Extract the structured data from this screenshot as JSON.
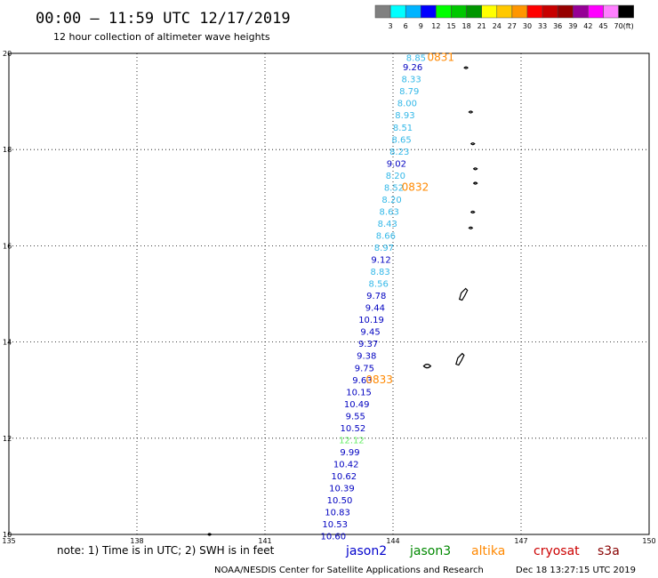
{
  "header": {
    "title": "00:00 – 11:59 UTC 12/17/2019",
    "subtitle": "12 hour collection of altimeter wave heights"
  },
  "colorbar": {
    "colors": [
      "#808080",
      "#00ffff",
      "#00b4ff",
      "#0000ff",
      "#00ff00",
      "#00c800",
      "#009600",
      "#ffff00",
      "#ffc800",
      "#ff9600",
      "#ff0000",
      "#c80000",
      "#960000",
      "#960096",
      "#ff00ff",
      "#ff80ff",
      "#000000"
    ],
    "labels": [
      "3",
      "6",
      "9",
      "12",
      "15",
      "18",
      "21",
      "24",
      "27",
      "30",
      "33",
      "36",
      "39",
      "42",
      "45",
      "70",
      "(ft)"
    ]
  },
  "chart_data": {
    "type": "scatter",
    "xlim": [
      135,
      150
    ],
    "ylim": [
      10,
      20
    ],
    "x_ticks": [
      "135",
      "138",
      "141",
      "144",
      "147",
      "150"
    ],
    "y_ticks": [
      "10",
      "12",
      "14",
      "16",
      "18",
      "20"
    ],
    "grid": true,
    "points": [
      {
        "lon": 144.54,
        "lat": 19.92,
        "swh": "8.85",
        "color": "#33b8e8"
      },
      {
        "lon": 144.46,
        "lat": 19.72,
        "swh": "9.26",
        "color": "#0000c0"
      },
      {
        "lon": 144.43,
        "lat": 19.47,
        "swh": "8.33",
        "color": "#33b8e8"
      },
      {
        "lon": 144.38,
        "lat": 19.22,
        "swh": "8.79",
        "color": "#33b8e8"
      },
      {
        "lon": 144.33,
        "lat": 18.97,
        "swh": "8.00",
        "color": "#33b8e8"
      },
      {
        "lon": 144.28,
        "lat": 18.72,
        "swh": "8.93",
        "color": "#33b8e8"
      },
      {
        "lon": 144.23,
        "lat": 18.47,
        "swh": "8.51",
        "color": "#33b8e8"
      },
      {
        "lon": 144.2,
        "lat": 18.22,
        "swh": "8.65",
        "color": "#33b8e8"
      },
      {
        "lon": 144.15,
        "lat": 17.97,
        "swh": "8.23",
        "color": "#33b8e8"
      },
      {
        "lon": 144.08,
        "lat": 17.72,
        "swh": "9.02",
        "color": "#0000c0"
      },
      {
        "lon": 144.06,
        "lat": 17.47,
        "swh": "8.20",
        "color": "#33b8e8"
      },
      {
        "lon": 144.02,
        "lat": 17.22,
        "swh": "8.52",
        "color": "#33b8e8"
      },
      {
        "lon": 143.97,
        "lat": 16.97,
        "swh": "8.20",
        "color": "#33b8e8"
      },
      {
        "lon": 143.91,
        "lat": 16.72,
        "swh": "8.63",
        "color": "#33b8e8"
      },
      {
        "lon": 143.87,
        "lat": 16.47,
        "swh": "8.43",
        "color": "#33b8e8"
      },
      {
        "lon": 143.83,
        "lat": 16.22,
        "swh": "8.66",
        "color": "#33b8e8"
      },
      {
        "lon": 143.79,
        "lat": 15.97,
        "swh": "8.97",
        "color": "#33b8e8"
      },
      {
        "lon": 143.72,
        "lat": 15.72,
        "swh": "9.12",
        "color": "#0000c0"
      },
      {
        "lon": 143.7,
        "lat": 15.47,
        "swh": "8.83",
        "color": "#33b8e8"
      },
      {
        "lon": 143.66,
        "lat": 15.22,
        "swh": "8.56",
        "color": "#33b8e8"
      },
      {
        "lon": 143.61,
        "lat": 14.97,
        "swh": "9.78",
        "color": "#0000c0"
      },
      {
        "lon": 143.58,
        "lat": 14.72,
        "swh": "9.44",
        "color": "#0000c0"
      },
      {
        "lon": 143.49,
        "lat": 14.47,
        "swh": "10.19",
        "color": "#0000c0"
      },
      {
        "lon": 143.47,
        "lat": 14.22,
        "swh": "9.45",
        "color": "#0000c0"
      },
      {
        "lon": 143.42,
        "lat": 13.97,
        "swh": "9.37",
        "color": "#0000c0"
      },
      {
        "lon": 143.38,
        "lat": 13.72,
        "swh": "9.38",
        "color": "#0000c0"
      },
      {
        "lon": 143.33,
        "lat": 13.47,
        "swh": "9.75",
        "color": "#0000c0"
      },
      {
        "lon": 143.28,
        "lat": 13.22,
        "swh": "9.63",
        "color": "#0000c0"
      },
      {
        "lon": 143.2,
        "lat": 12.97,
        "swh": "10.15",
        "color": "#0000c0"
      },
      {
        "lon": 143.15,
        "lat": 12.72,
        "swh": "10.49",
        "color": "#0000c0"
      },
      {
        "lon": 143.12,
        "lat": 12.47,
        "swh": "9.55",
        "color": "#0000c0"
      },
      {
        "lon": 143.06,
        "lat": 12.22,
        "swh": "10.52",
        "color": "#0000c0"
      },
      {
        "lon": 143.03,
        "lat": 11.97,
        "swh": "12.12",
        "color": "#66ee66"
      },
      {
        "lon": 142.99,
        "lat": 11.72,
        "swh": "9.99",
        "color": "#0000c0"
      },
      {
        "lon": 142.9,
        "lat": 11.47,
        "swh": "10.42",
        "color": "#0000c0"
      },
      {
        "lon": 142.85,
        "lat": 11.22,
        "swh": "10.62",
        "color": "#0000c0"
      },
      {
        "lon": 142.8,
        "lat": 10.97,
        "swh": "10.39",
        "color": "#0000c0"
      },
      {
        "lon": 142.75,
        "lat": 10.72,
        "swh": "10.50",
        "color": "#0000c0"
      },
      {
        "lon": 142.7,
        "lat": 10.47,
        "swh": "10.83",
        "color": "#0000c0"
      },
      {
        "lon": 142.64,
        "lat": 10.22,
        "swh": "10.53",
        "color": "#0000c0"
      },
      {
        "lon": 142.6,
        "lat": 9.97,
        "swh": "10.60",
        "color": "#0000c0"
      }
    ],
    "pass_times": [
      {
        "lon": 145.12,
        "lat": 19.92,
        "text": "0831"
      },
      {
        "lon": 144.52,
        "lat": 17.22,
        "text": "0832"
      },
      {
        "lon": 143.68,
        "lat": 13.22,
        "text": "0833"
      }
    ],
    "islands": [
      {
        "lon": 145.71,
        "lat": 19.7
      },
      {
        "lon": 145.82,
        "lat": 18.78
      },
      {
        "lon": 145.87,
        "lat": 18.12
      },
      {
        "lon": 145.93,
        "lat": 17.6
      },
      {
        "lon": 145.93,
        "lat": 17.3
      },
      {
        "lon": 145.87,
        "lat": 16.7
      },
      {
        "lon": 145.82,
        "lat": 16.37
      },
      {
        "lon": 145.66,
        "lat": 15.0
      },
      {
        "lon": 145.58,
        "lat": 13.65
      },
      {
        "lon": 144.8,
        "lat": 13.5
      },
      {
        "lon": 139.7,
        "lat": 10.0
      }
    ]
  },
  "footer": {
    "note": "note:  1) Time is in UTC;  2) SWH is in feet",
    "satellites": [
      {
        "name": "jason2",
        "color": "#0000cc"
      },
      {
        "name": "jason3",
        "color": "#008800"
      },
      {
        "name": "altika",
        "color": "#ff8800"
      },
      {
        "name": "cryosat",
        "color": "#cc0000"
      },
      {
        "name": "s3a",
        "color": "#880000"
      }
    ],
    "credit": "NOAA/NESDIS Center for Satellite Applications and Research",
    "timestamp": "Dec 18 13:27:15 UTC 2019"
  }
}
